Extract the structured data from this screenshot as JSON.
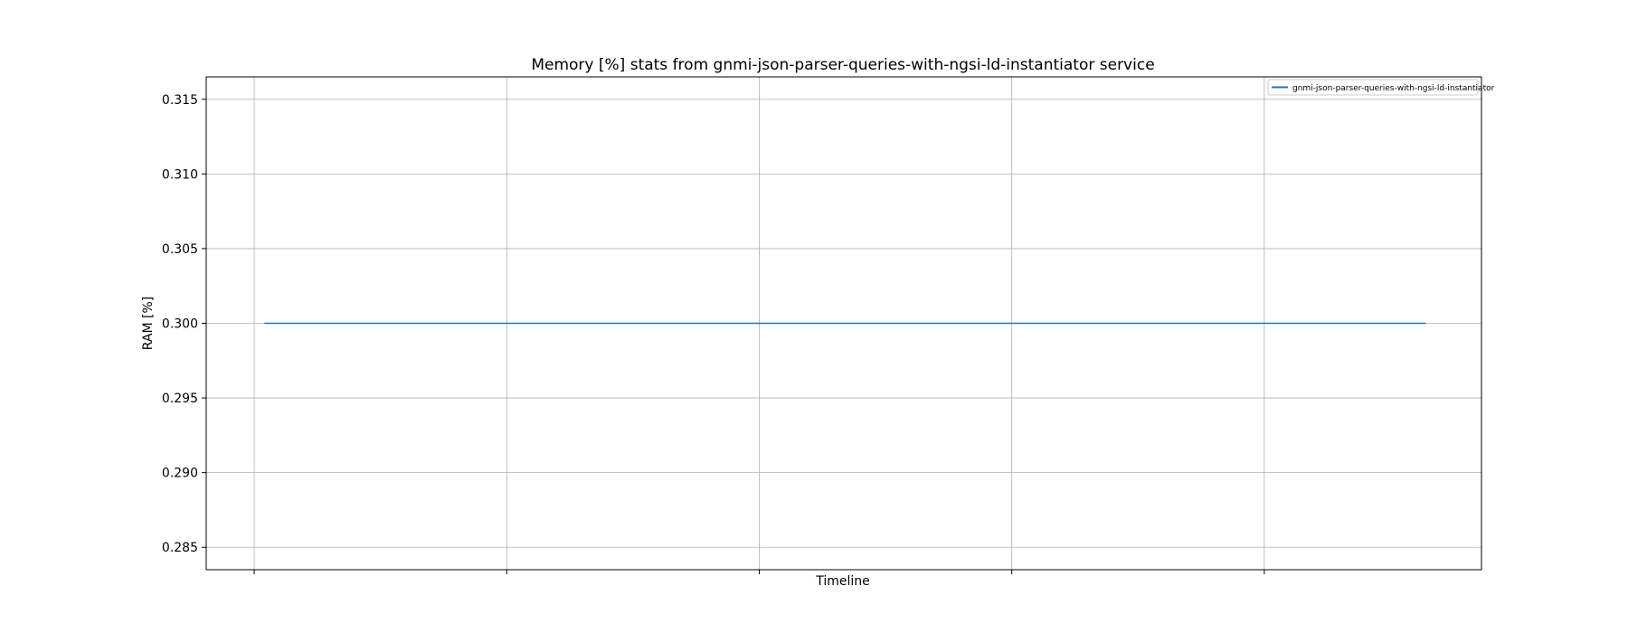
{
  "chart_data": {
    "type": "line",
    "title": "Memory [%] stats from gnmi-json-parser-queries-with-ngsi-ld-instantiator service",
    "xlabel": "Timeline",
    "ylabel": "RAM [%]",
    "ylim": [
      0.2835,
      0.3165
    ],
    "yticks": [
      0.285,
      0.29,
      0.295,
      0.3,
      0.305,
      0.31,
      0.315
    ],
    "ytick_labels": [
      "0.285",
      "0.290",
      "0.295",
      "0.300",
      "0.305",
      "0.310",
      "0.315"
    ],
    "xlim": [
      -0.19,
      4.86
    ],
    "xticks": [
      0,
      1,
      2,
      3,
      4
    ],
    "grid": true,
    "legend_position": "top-right",
    "series": [
      {
        "name": "gnmi-json-parser-queries-with-ngsi-ld-instantiator",
        "color": "#1f77b4",
        "x": [
          0.04,
          4.64
        ],
        "y": [
          0.3,
          0.3
        ]
      }
    ]
  }
}
